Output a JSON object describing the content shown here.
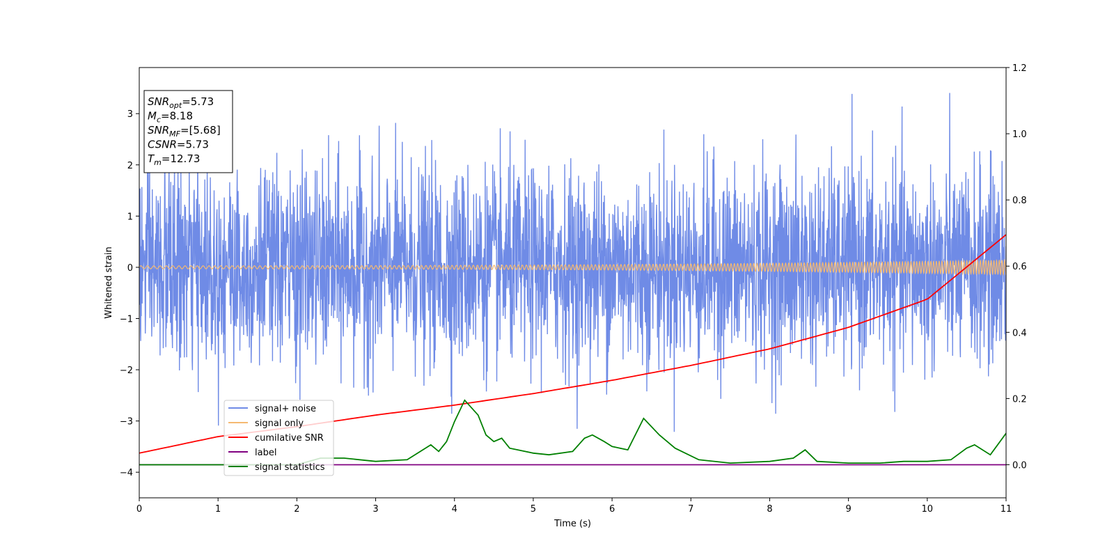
{
  "chart_data": {
    "type": "line",
    "xlabel": "Time (s)",
    "ylabel": "Whitened strain",
    "xlim": [
      0,
      11
    ],
    "ylim_left": [
      -4.5,
      3.9
    ],
    "ylim_right": [
      -0.1,
      1.2
    ],
    "x_ticks": [
      "0",
      "1",
      "2",
      "3",
      "4",
      "5",
      "6",
      "7",
      "8",
      "9",
      "10",
      "11"
    ],
    "y_ticks_left": [
      "3",
      "2",
      "1",
      "0",
      "−1",
      "−2",
      "−3",
      "−4"
    ],
    "y_ticks_right": [
      "1.2",
      "1.0",
      "0.8",
      "0.6",
      "0.4",
      "0.2",
      "0.0"
    ],
    "grid": false,
    "legend_position": "lower-left",
    "legend": [
      {
        "label": "signal+ noise",
        "color": "#6f8be6"
      },
      {
        "label": "signal only",
        "color": "#f5b971"
      },
      {
        "label": "cumilative SNR",
        "color": "#ff0000"
      },
      {
        "label": "label",
        "color": "#800080"
      },
      {
        "label": "signal statistics",
        "color": "#008000"
      }
    ],
    "info_box": [
      {
        "base": "SNR",
        "sub": "opt",
        "value": "=5.73"
      },
      {
        "base": "M",
        "sub": "c",
        "value": "=8.18"
      },
      {
        "base": "SNR",
        "sub": "MF",
        "value": "=[5.68]"
      },
      {
        "base": "CSNR",
        "sub": "",
        "value": "=5.73"
      },
      {
        "base": "T",
        "sub": "m",
        "value": "=12.73"
      }
    ],
    "series": [
      {
        "name": "signal+ noise",
        "axis": "left",
        "color": "#6f8be6",
        "description_noise_sigma": 0.95,
        "typical_range": [
          -3.7,
          3.5
        ]
      },
      {
        "name": "signal only",
        "axis": "left",
        "color": "#f5b971",
        "amplitude_start": 0.03,
        "amplitude_end": 0.14
      },
      {
        "name": "cumilative SNR",
        "axis": "right",
        "color": "#ff0000",
        "x": [
          0,
          1,
          2,
          3,
          4,
          5,
          6,
          7,
          8,
          9,
          10,
          11
        ],
        "y": [
          0.035,
          0.085,
          0.115,
          0.15,
          0.18,
          0.215,
          0.255,
          0.3,
          0.35,
          0.415,
          0.5,
          0.695
        ]
      },
      {
        "name": "label",
        "axis": "right",
        "color": "#800080",
        "x": [
          0,
          11
        ],
        "y": [
          0.0,
          0.0
        ]
      },
      {
        "name": "signal statistics",
        "axis": "right",
        "color": "#008000",
        "x": [
          0,
          1.0,
          2.0,
          2.3,
          2.6,
          3.0,
          3.4,
          3.7,
          3.8,
          3.9,
          4.0,
          4.13,
          4.3,
          4.4,
          4.5,
          4.6,
          4.7,
          5.0,
          5.2,
          5.5,
          5.65,
          5.75,
          5.9,
          6.0,
          6.2,
          6.4,
          6.6,
          6.8,
          7.1,
          7.5,
          8.0,
          8.3,
          8.45,
          8.6,
          9.0,
          9.4,
          9.7,
          10.0,
          10.3,
          10.5,
          10.6,
          10.8,
          11.0
        ],
        "y": [
          0.0,
          0.0,
          0.0,
          0.02,
          0.02,
          0.01,
          0.015,
          0.06,
          0.04,
          0.07,
          0.13,
          0.195,
          0.15,
          0.09,
          0.07,
          0.08,
          0.05,
          0.035,
          0.03,
          0.04,
          0.08,
          0.09,
          0.07,
          0.055,
          0.045,
          0.14,
          0.09,
          0.05,
          0.015,
          0.005,
          0.01,
          0.02,
          0.045,
          0.01,
          0.005,
          0.005,
          0.01,
          0.01,
          0.015,
          0.05,
          0.06,
          0.03,
          0.095
        ]
      }
    ]
  }
}
